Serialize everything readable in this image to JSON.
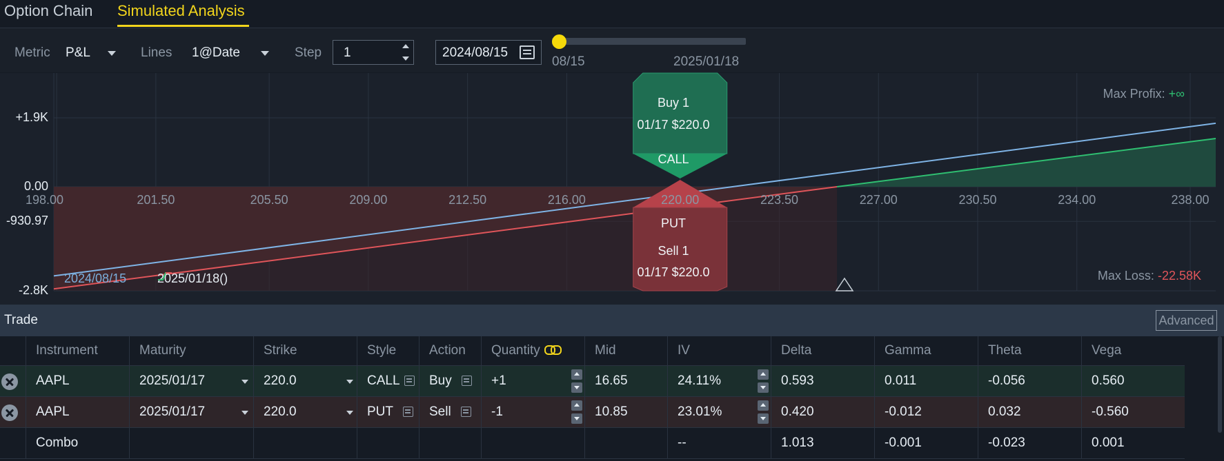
{
  "tabs": [
    {
      "label": "Option Chain",
      "active": false
    },
    {
      "label": "Simulated Analysis",
      "active": true
    }
  ],
  "controls": {
    "metric_label": "Metric",
    "metric_value": "P&L",
    "lines_label": "Lines",
    "lines_value": "1@Date",
    "step_label": "Step",
    "step_value": "1",
    "date_value": "2024/08/15",
    "slider_start": "08/15",
    "slider_end": "2025/01/18",
    "slider_position": 0
  },
  "chart_data": {
    "type": "line",
    "x_ticks": [
      "198.00",
      "201.50",
      "205.50",
      "209.00",
      "212.50",
      "216.00",
      "220.00",
      "223.50",
      "227.00",
      "230.50",
      "234.00",
      "238.00"
    ],
    "x_tick_values": [
      198.0,
      201.5,
      205.5,
      209.0,
      212.5,
      216.0,
      220.0,
      223.5,
      227.0,
      230.5,
      234.0,
      238.0
    ],
    "xlim": [
      197.9,
      238.9
    ],
    "y_ticks": [
      "+1.9K",
      "0.00",
      "-930.97",
      "-2.8K"
    ],
    "y_tick_values": [
      1900,
      0,
      -930.97,
      -2800
    ],
    "ylim": [
      -2800,
      2800
    ],
    "series": [
      {
        "name": "2024/08/15",
        "color": "#7fb4e6",
        "x": [
          197.9,
          238.9
        ],
        "y": [
          -2400,
          1750
        ]
      },
      {
        "name": "2025/01/18",
        "color_loss": "#e0555a",
        "color_profit": "#2fbf71",
        "x": [
          197.9,
          238.9
        ],
        "y": [
          -2750,
          1330
        ]
      }
    ],
    "breakeven_marker_x": 225.8,
    "max_profit_label": "Max Profix:",
    "max_profit_value": "+∞",
    "max_loss_label": "Max Loss:",
    "max_loss_value": "-22.58K",
    "legend": [
      {
        "label": "2024/08/15",
        "color": "#7fb4e6"
      },
      {
        "label": "2025/01/18(",
        "suffix": ")",
        "color": "#e6edf3"
      }
    ],
    "call_badge": {
      "line1": "Buy 1",
      "line2": "01/17 $220.0",
      "tag": "CALL"
    },
    "put_badge": {
      "tag": "PUT",
      "line1": "Sell 1",
      "line2": "01/17 $220.0"
    }
  },
  "trade": {
    "title": "Trade",
    "advanced_label": "Advanced",
    "columns": [
      "Instrument",
      "Maturity",
      "Strike",
      "Style",
      "Action",
      "Quantity",
      "Mid",
      "IV",
      "Delta",
      "Gamma",
      "Theta",
      "Vega"
    ],
    "rows": [
      {
        "instrument": "AAPL",
        "maturity": "2025/01/17",
        "strike": "220.0",
        "style": "CALL",
        "action": "Buy",
        "quantity": "+1",
        "mid": "16.65",
        "iv": "24.11%",
        "delta": "0.593",
        "gamma": "0.011",
        "theta": "-0.056",
        "vega": "0.560"
      },
      {
        "instrument": "AAPL",
        "maturity": "2025/01/17",
        "strike": "220.0",
        "style": "PUT",
        "action": "Sell",
        "quantity": "-1",
        "mid": "10.85",
        "iv": "23.01%",
        "delta": "0.420",
        "gamma": "-0.012",
        "theta": "0.032",
        "vega": "-0.560"
      }
    ],
    "combo": {
      "instrument": "Combo",
      "iv": "--",
      "delta": "1.013",
      "gamma": "-0.001",
      "theta": "-0.023",
      "vega": "0.001"
    }
  }
}
